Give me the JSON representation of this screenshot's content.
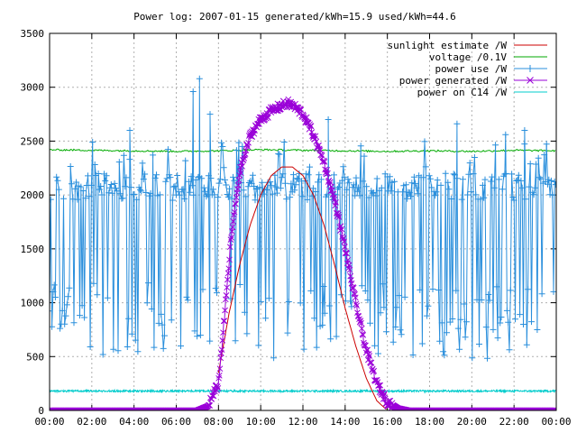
{
  "chart_data": {
    "type": "line",
    "title": "Power log: 2007-01-15 generated/kWh=15.9 used/kWh=44.6",
    "xlabel": "",
    "ylabel": "",
    "x_ticks": [
      "00:00",
      "02:00",
      "04:00",
      "06:00",
      "08:00",
      "10:00",
      "12:00",
      "14:00",
      "16:00",
      "18:00",
      "20:00",
      "22:00",
      "00:00"
    ],
    "y_ticks": [
      0,
      500,
      1000,
      1500,
      2000,
      2500,
      3000,
      3500
    ],
    "xlim_hours": [
      0,
      24
    ],
    "ylim": [
      0,
      3500
    ],
    "grid": true,
    "legend_position": "top-right",
    "series": [
      {
        "name": "sunlight estimate /W",
        "color": "#cc0000",
        "style": "line",
        "x_hours": [
          8.0,
          8.5,
          9.0,
          9.5,
          10.0,
          10.5,
          11.0,
          11.5,
          12.0,
          12.5,
          13.0,
          13.5,
          14.0,
          14.5,
          15.0,
          15.5,
          16.0
        ],
        "values": [
          350,
          900,
          1350,
          1720,
          2000,
          2180,
          2260,
          2260,
          2180,
          2000,
          1720,
          1350,
          950,
          600,
          300,
          90,
          0
        ]
      },
      {
        "name": "voltage /0.1V",
        "color": "#00aa00",
        "style": "line",
        "x_hours": [
          0,
          2,
          4,
          6,
          8,
          10,
          12,
          14,
          16,
          18,
          20,
          22,
          24
        ],
        "values": [
          2420,
          2415,
          2410,
          2405,
          2410,
          2420,
          2415,
          2410,
          2405,
          2410,
          2405,
          2415,
          2410
        ]
      },
      {
        "name": "power use /W",
        "color": "#2a8fdc",
        "style": "linespoints",
        "point": "plus",
        "baseline_range": [
          1950,
          2200
        ],
        "dip_range": [
          480,
          1200
        ],
        "peak_points": [
          {
            "x_hours": 7.1,
            "value": 3080
          },
          {
            "x_hours": 6.8,
            "value": 2960
          },
          {
            "x_hours": 7.6,
            "value": 2750
          },
          {
            "x_hours": 3.8,
            "value": 2600
          },
          {
            "x_hours": 13.2,
            "value": 2700
          },
          {
            "x_hours": 19.3,
            "value": 2660
          },
          {
            "x_hours": 21.6,
            "value": 2560
          },
          {
            "x_hours": 22.5,
            "value": 2600
          }
        ]
      },
      {
        "name": "power generated /W",
        "color": "#9a00d8",
        "style": "linespoints",
        "point": "cross",
        "x_hours": [
          0,
          7.0,
          7.5,
          8.0,
          8.3,
          8.6,
          9.0,
          9.5,
          10.0,
          10.5,
          11.0,
          11.3,
          11.6,
          12.0,
          12.5,
          13.0,
          13.5,
          14.0,
          14.5,
          15.0,
          15.5,
          16.0,
          16.5,
          17.0,
          24
        ],
        "values": [
          0,
          0,
          40,
          250,
          900,
          1600,
          2200,
          2550,
          2700,
          2780,
          2830,
          2850,
          2820,
          2750,
          2560,
          2300,
          1950,
          1500,
          1000,
          560,
          250,
          80,
          20,
          0,
          0
        ]
      },
      {
        "name": "power on C14 /W",
        "color": "#00cccc",
        "style": "line",
        "x_hours": [
          0,
          24
        ],
        "values": [
          180,
          180
        ]
      }
    ]
  }
}
